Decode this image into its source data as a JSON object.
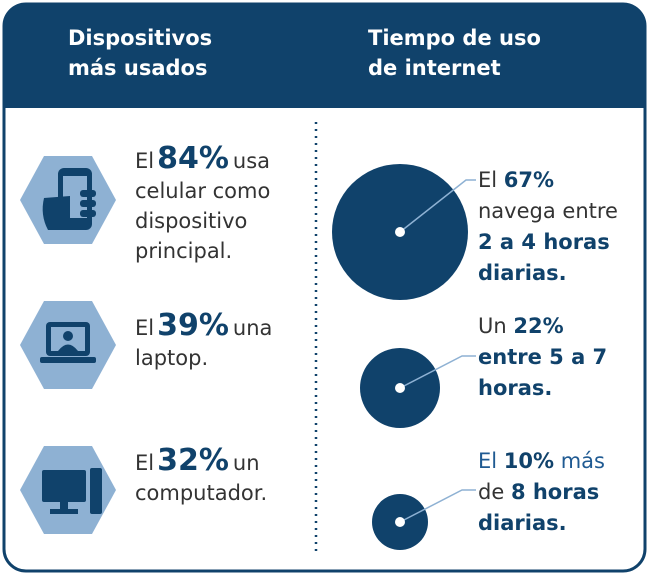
{
  "header": {
    "left": [
      "Dispositivos",
      "más usados"
    ],
    "right": [
      "Tiempo de uso",
      "de internet"
    ]
  },
  "devices": [
    {
      "prefix": "El",
      "percent": "84%",
      "suffix": "usa",
      "lines": [
        "celular como",
        "dispositivo",
        "principal."
      ]
    },
    {
      "prefix": "El",
      "percent": "39%",
      "suffix": "una",
      "lines": [
        "laptop."
      ]
    },
    {
      "prefix": "El",
      "percent": "32%",
      "suffix": "un",
      "lines": [
        "computador."
      ]
    }
  ],
  "usage": [
    {
      "lines": [
        [
          {
            "text": "El ",
            "bold": false
          },
          {
            "text": "67%",
            "bold": true
          }
        ],
        [
          {
            "text": "navega entre",
            "bold": false
          }
        ],
        [
          {
            "text": "2 a 4 horas",
            "bold": true
          }
        ],
        [
          {
            "text": "diarias.",
            "bold": true
          }
        ]
      ]
    },
    {
      "lines": [
        [
          {
            "text": "Un ",
            "bold": false
          },
          {
            "text": "22%",
            "bold": true
          }
        ],
        [
          {
            "text": "entre 5 a 7",
            "bold": true
          }
        ],
        [
          {
            "text": "horas.",
            "bold": true
          }
        ]
      ]
    },
    {
      "lines": [
        [
          {
            "text": "El ",
            "bold": false
          },
          {
            "text": "10%",
            "bold": true
          },
          {
            "text": " más",
            "bold": false
          }
        ],
        [
          {
            "text": "de ",
            "bold": false
          },
          {
            "text": "8 horas",
            "bold": true
          }
        ],
        [
          {
            "text": "diarias.",
            "bold": true
          }
        ]
      ]
    }
  ]
}
